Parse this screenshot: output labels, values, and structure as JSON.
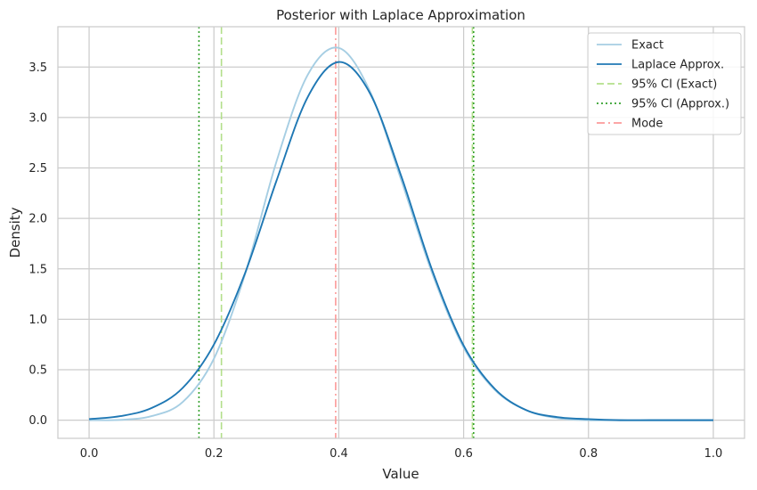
{
  "chart_data": {
    "type": "line",
    "title": "Posterior with Laplace Approximation",
    "xlabel": "Value",
    "ylabel": "Density",
    "xlim": [
      -0.05,
      1.05
    ],
    "ylim": [
      -0.18,
      3.9
    ],
    "xticks": [
      0.0,
      0.2,
      0.4,
      0.6,
      0.8,
      1.0
    ],
    "xtick_labels": [
      "0.0",
      "0.2",
      "0.4",
      "0.6",
      "0.8",
      "1.0"
    ],
    "yticks": [
      0.0,
      0.5,
      1.0,
      1.5,
      2.0,
      2.5,
      3.0,
      3.5
    ],
    "ytick_labels": [
      "0.0",
      "0.5",
      "1.0",
      "1.5",
      "2.0",
      "2.5",
      "3.0",
      "3.5"
    ],
    "grid": true,
    "legend_position": "top-right",
    "series": [
      {
        "name": "Exact",
        "kind": "curve",
        "color": "#a6cee3",
        "style": "solid",
        "x": [
          0.0,
          0.05,
          0.1,
          0.15,
          0.2,
          0.25,
          0.3,
          0.35,
          0.4,
          0.45,
          0.5,
          0.55,
          0.6,
          0.65,
          0.7,
          0.75,
          0.8,
          0.85,
          0.9,
          0.95,
          1.0
        ],
        "y": [
          0.0,
          0.003,
          0.04,
          0.18,
          0.61,
          1.45,
          2.56,
          3.42,
          3.69,
          3.26,
          2.38,
          1.45,
          0.72,
          0.3,
          0.1,
          0.02,
          0.0,
          0.0,
          0.0,
          0.0,
          0.0
        ]
      },
      {
        "name": "Laplace Approx.",
        "kind": "curve",
        "color": "#1f78b4",
        "style": "solid",
        "x": [
          0.0,
          0.05,
          0.1,
          0.15,
          0.2,
          0.25,
          0.3,
          0.35,
          0.4,
          0.45,
          0.5,
          0.55,
          0.6,
          0.65,
          0.7,
          0.75,
          0.8,
          0.85,
          0.9,
          0.95,
          1.0
        ],
        "y": [
          0.01,
          0.04,
          0.12,
          0.32,
          0.75,
          1.46,
          2.37,
          3.2,
          3.55,
          3.24,
          2.42,
          1.48,
          0.74,
          0.31,
          0.1,
          0.03,
          0.01,
          0.0,
          0.0,
          0.0,
          0.0
        ]
      },
      {
        "name": "95% CI (Exact)",
        "kind": "vlines",
        "color": "#b2df8a",
        "style": "dashed",
        "x": [
          0.212,
          0.614
        ]
      },
      {
        "name": "95% CI (Approx.)",
        "kind": "vlines",
        "color": "#33a02c",
        "style": "dotted",
        "x": [
          0.176,
          0.616
        ]
      },
      {
        "name": "Mode",
        "kind": "vlines",
        "color": "#fb9a99",
        "style": "dashdot",
        "x": [
          0.395
        ]
      }
    ]
  }
}
